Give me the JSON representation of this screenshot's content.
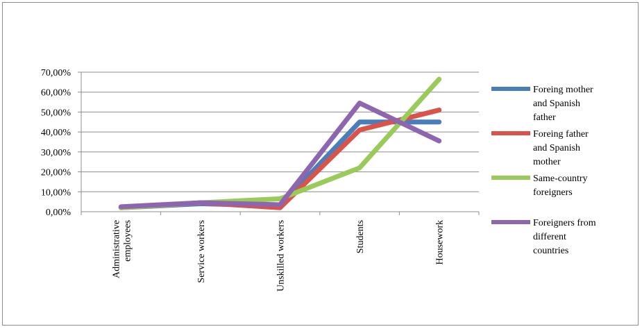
{
  "chart_data": {
    "type": "line",
    "title": "",
    "xlabel": "",
    "ylabel": "",
    "categories": [
      [
        "Administrative",
        "employees"
      ],
      [
        "Service workers"
      ],
      [
        "Unskilled workers"
      ],
      [
        "Students"
      ],
      [
        "Housework"
      ]
    ],
    "ylim": [
      0,
      0.7
    ],
    "yticks": [
      "0,00%",
      "10,00%",
      "20,00%",
      "30,00%",
      "40,00%",
      "50,00%",
      "60,00%",
      "70,00%"
    ],
    "grid": true,
    "legend_position": "right",
    "series": [
      {
        "name": "Foreing mother and Spanish father",
        "legend_lines": [
          "Foreing mother",
          "and Spanish",
          "father"
        ],
        "color": "#4a7ebb",
        "values": [
          0.02,
          0.04,
          0.03,
          0.45,
          0.45
        ]
      },
      {
        "name": "Foreing father and Spanish mother",
        "legend_lines": [
          "Foreing father",
          "and Spanish",
          "mother"
        ],
        "color": "#d9534a",
        "values": [
          0.02,
          0.045,
          0.02,
          0.41,
          0.51
        ]
      },
      {
        "name": "Same-country foreigners",
        "legend_lines": [
          "Same-country",
          "foreigners"
        ],
        "color": "#9acb5a",
        "values": [
          0.02,
          0.045,
          0.065,
          0.22,
          0.665
        ]
      },
      {
        "name": "Foreigners from different countries",
        "legend_lines": [
          "Foreigners from",
          "different",
          "countries"
        ],
        "color": "#8e66b0",
        "values": [
          0.025,
          0.045,
          0.035,
          0.545,
          0.355
        ]
      }
    ]
  }
}
